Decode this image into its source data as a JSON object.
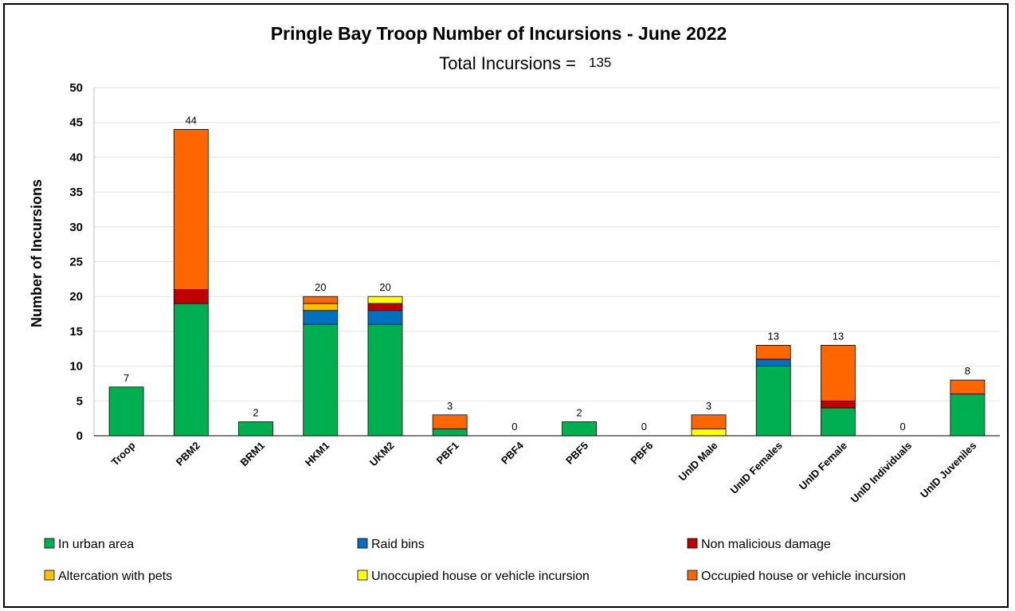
{
  "chart_data": {
    "type": "bar",
    "stacked": true,
    "title": "Pringle Bay Troop Number of Incursions - June 2022",
    "subtitle_label": "Total Incursions =",
    "subtitle_value": "135",
    "ylabel": "Number of Incursions",
    "xlabel": "",
    "ylim": [
      0,
      50
    ],
    "yticks": [
      0,
      5,
      10,
      15,
      20,
      25,
      30,
      35,
      40,
      45,
      50
    ],
    "grid": true,
    "legend_position": "bottom",
    "categories": [
      "Troop",
      "PBM2",
      "BRM1",
      "HKM1",
      "UKM2",
      "PBF1",
      "PBF4",
      "PBF5",
      "PBF6",
      "UnID Male",
      "UnID Females",
      "UnID Female",
      "UnID Individuals",
      "UnID Juveniles"
    ],
    "series": [
      {
        "name": "In urban area",
        "color": "#00b050",
        "values": [
          7,
          19,
          2,
          16,
          16,
          1,
          0,
          2,
          0,
          0,
          10,
          4,
          0,
          6
        ]
      },
      {
        "name": "Raid bins",
        "color": "#0070c0",
        "values": [
          0,
          0,
          0,
          2,
          2,
          0,
          0,
          0,
          0,
          0,
          1,
          0,
          0,
          0
        ]
      },
      {
        "name": "Non malicious damage",
        "color": "#c00000",
        "values": [
          0,
          2,
          0,
          0,
          1,
          0,
          0,
          0,
          0,
          0,
          0,
          1,
          0,
          0
        ]
      },
      {
        "name": "Altercation with pets",
        "color": "#ffc000",
        "values": [
          0,
          0,
          0,
          1,
          0,
          0,
          0,
          0,
          0,
          0,
          0,
          0,
          0,
          0
        ]
      },
      {
        "name": "Unoccupied house or vehicle incursion",
        "color": "#ffff00",
        "values": [
          0,
          0,
          0,
          0,
          1,
          0,
          0,
          0,
          0,
          1,
          0,
          0,
          0,
          0
        ]
      },
      {
        "name": "Occupied house or vehicle incursion",
        "color": "#ff6600",
        "values": [
          0,
          23,
          0,
          1,
          0,
          2,
          0,
          0,
          0,
          2,
          2,
          8,
          0,
          2
        ]
      }
    ],
    "totals": [
      7,
      44,
      2,
      20,
      20,
      3,
      0,
      2,
      0,
      3,
      13,
      13,
      0,
      8
    ]
  }
}
